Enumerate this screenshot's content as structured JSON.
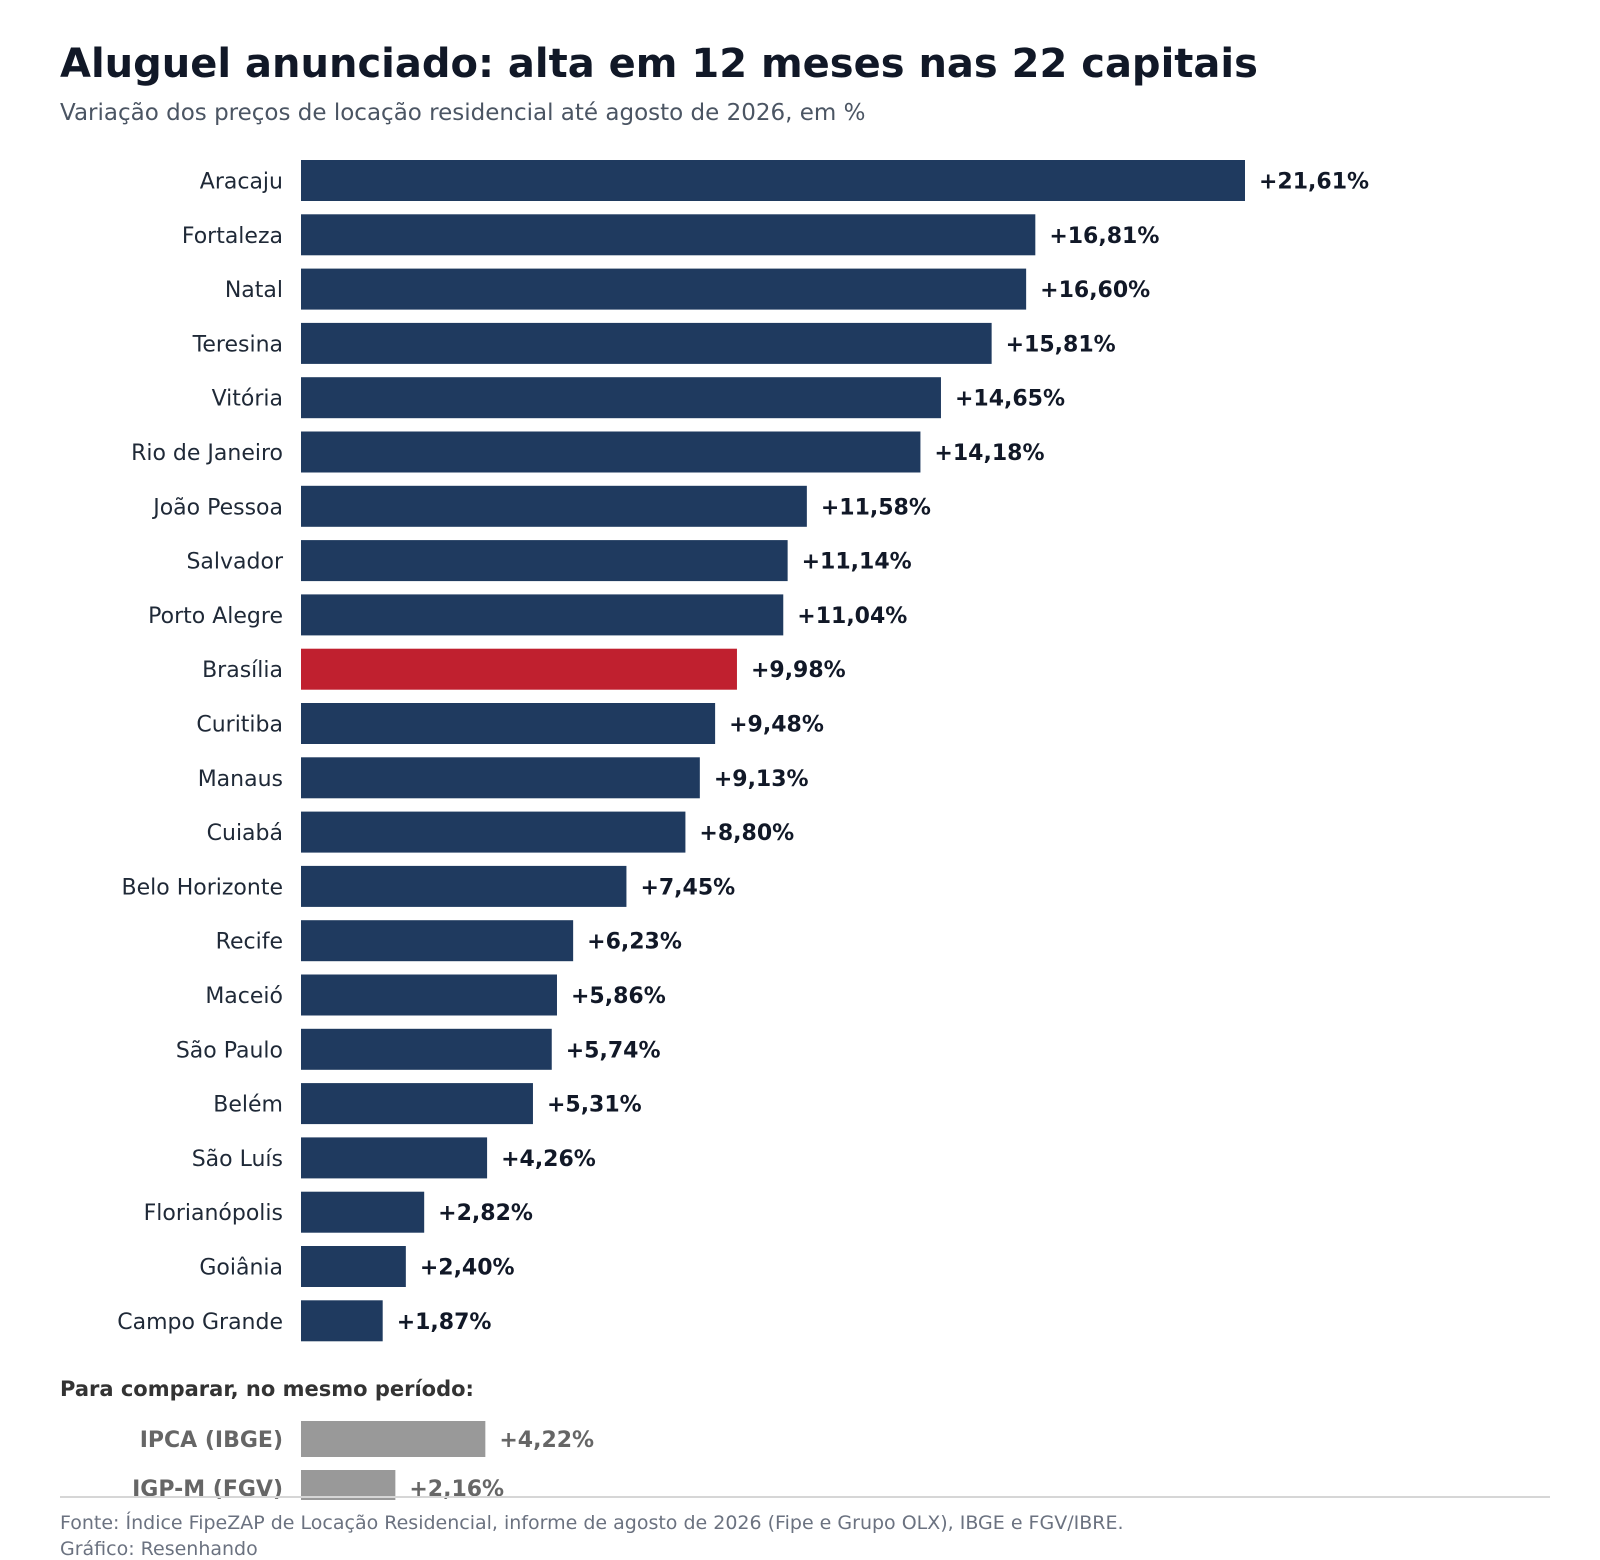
{
  "header": {
    "title": "Aluguel anunciado: alta em 12 meses nas 22 capitais",
    "subtitle": "Variação dos preços de locação residencial até agosto de 2026, em %"
  },
  "chart_data": [
    {
      "type": "bar",
      "orientation": "horizontal",
      "title": "Aluguel anunciado: alta em 12 meses nas 22 capitais",
      "subtitle": "Variação dos preços de locação residencial até agosto de 2026, em %",
      "categories": [
        "Aracaju",
        "Fortaleza",
        "Natal",
        "Teresina",
        "Vitória",
        "Rio de Janeiro",
        "João Pessoa",
        "Salvador",
        "Porto Alegre",
        "Brasília",
        "Curitiba",
        "Manaus",
        "Cuiabá",
        "Belo Horizonte",
        "Recife",
        "Maceió",
        "São Paulo",
        "Belém",
        "São Luís",
        "Florianópolis",
        "Goiânia",
        "Campo Grande"
      ],
      "values": [
        21.61,
        16.81,
        16.6,
        15.81,
        14.65,
        14.18,
        11.58,
        11.14,
        11.04,
        9.98,
        9.48,
        9.13,
        8.8,
        7.45,
        6.23,
        5.86,
        5.74,
        5.31,
        4.26,
        2.82,
        2.4,
        1.87
      ],
      "labels": [
        "+21,61%",
        "+16,81%",
        "+16,60%",
        "+15,81%",
        "+14,65%",
        "+14,18%",
        "+11,58%",
        "+11,14%",
        "+11,04%",
        "+9,98%",
        "+9,48%",
        "+9,13%",
        "+8,80%",
        "+7,45%",
        "+6,23%",
        "+5,86%",
        "+5,74%",
        "+5,31%",
        "+4,26%",
        "+2,82%",
        "+2,40%",
        "+1,87%"
      ],
      "highlight": "Brasília",
      "colors": {
        "bar": "#1f3a5f",
        "highlight": "#c0202f"
      },
      "xlabel": "",
      "ylabel": "",
      "xlim": [
        0,
        21.61
      ],
      "grid": false,
      "legend": "none"
    },
    {
      "type": "bar",
      "orientation": "horizontal",
      "title": "Para comparar, no mesmo período:",
      "categories": [
        "IPCA (IBGE)",
        "IGP-M (FGV)"
      ],
      "values": [
        4.22,
        2.16
      ],
      "labels": [
        "+4,22%",
        "+2,16%"
      ],
      "colors": {
        "bar": "#999999",
        "text": "#666666"
      },
      "xlim": [
        0,
        21.61
      ],
      "grid": false,
      "legend": "none"
    }
  ],
  "footer": {
    "source": "Fonte: Índice FipeZAP de Locação Residencial, informe de agosto de 2026 (Fipe e Grupo OLX), IBGE e FGV/IBRE.",
    "credit": "Gráfico: Resenhando"
  }
}
